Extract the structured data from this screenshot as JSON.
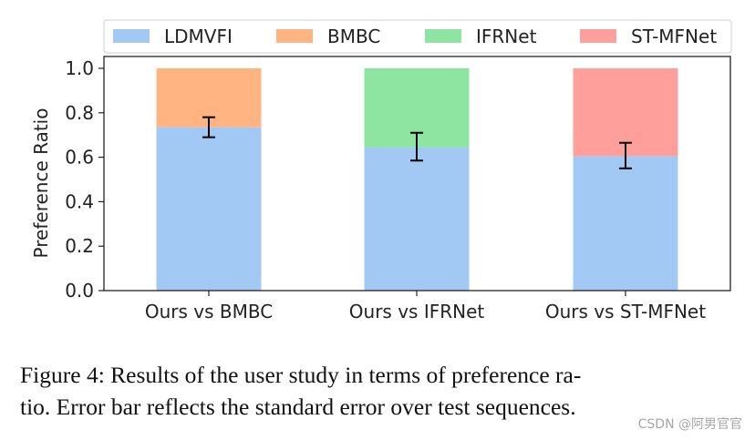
{
  "chart_data": {
    "type": "bar",
    "stacked": true,
    "categories": [
      "Ours vs BMBC",
      "Ours vs IFRNet",
      "Ours vs ST-MFNet"
    ],
    "ylabel": "Preference Ratio",
    "ylim": [
      0,
      1.0
    ],
    "yticks": [
      "0.0",
      "0.2",
      "0.4",
      "0.6",
      "0.8",
      "1.0"
    ],
    "legend": {
      "placement": "top",
      "entries": [
        {
          "label": "LDMVFI",
          "color": "#a1c9f4"
        },
        {
          "label": "BMBC",
          "color": "#ffb482"
        },
        {
          "label": "IFRNet",
          "color": "#8de5a1"
        },
        {
          "label": "ST-MFNet",
          "color": "#ff9f9b"
        }
      ]
    },
    "bars": [
      {
        "category": "Ours vs BMBC",
        "ours": 0.735,
        "other": 0.265,
        "other_name": "BMBC",
        "error_low": 0.69,
        "error_high": 0.78
      },
      {
        "category": "Ours vs IFRNet",
        "ours": 0.645,
        "other": 0.355,
        "other_name": "IFRNet",
        "error_low": 0.585,
        "error_high": 0.71
      },
      {
        "category": "Ours vs ST-MFNet",
        "ours": 0.605,
        "other": 0.395,
        "other_name": "ST-MFNet",
        "error_low": 0.55,
        "error_high": 0.665
      }
    ],
    "colors": {
      "LDMVFI": "#a1c9f4",
      "BMBC": "#ffb482",
      "IFRNet": "#8de5a1",
      "ST-MFNet": "#ff9f9b"
    }
  },
  "caption": {
    "line1": "Figure 4: Results of the user study in terms of preference ra-",
    "line2": "tio. Error bar reflects the standard error over test sequences."
  },
  "watermark": "CSDN @阿男官官"
}
